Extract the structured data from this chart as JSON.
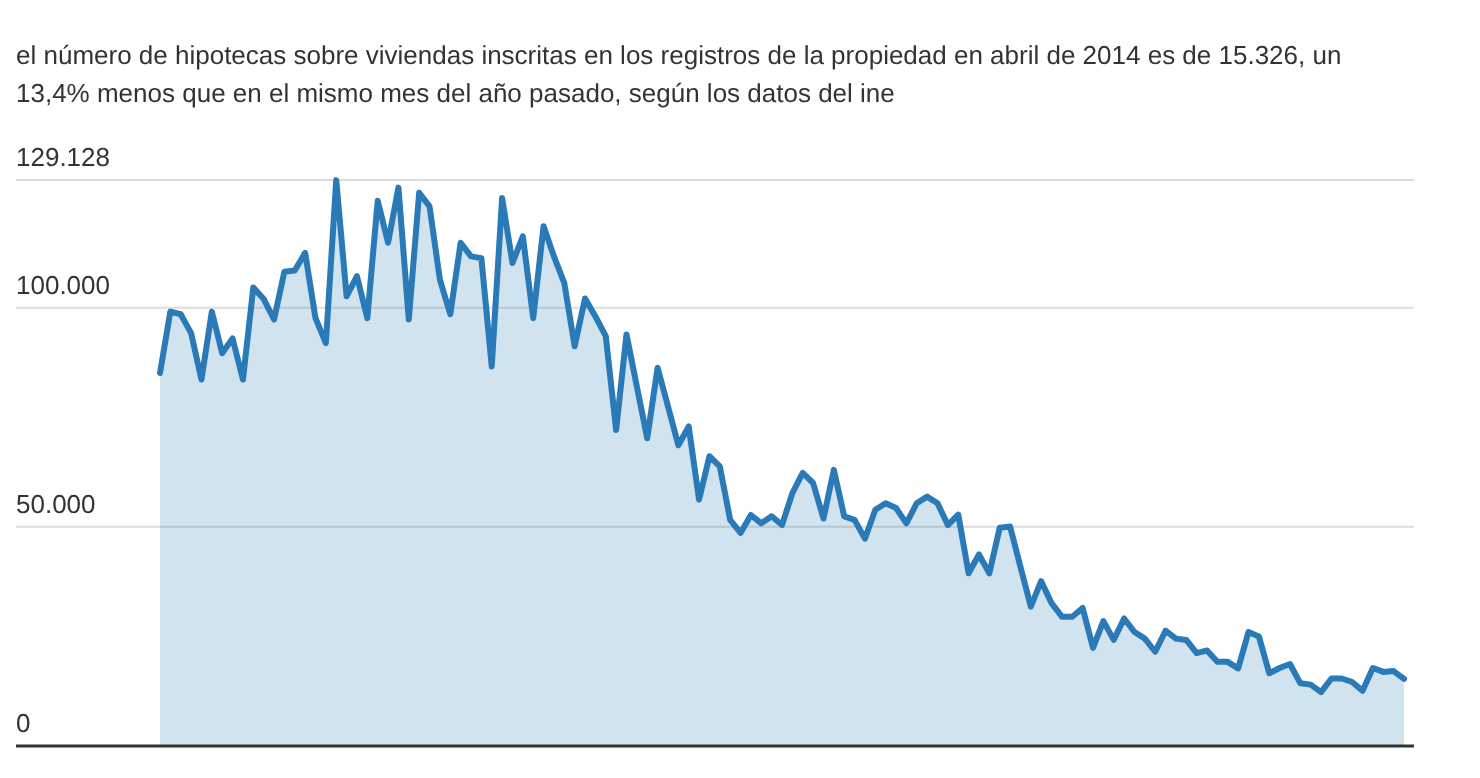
{
  "chart_data": {
    "type": "area",
    "subtitle": "el número de hipotecas sobre viviendas inscritas en los registros de la propiedad en abril de 2014 es de 15.326, un 13,4% menos que en el mismo mes del año pasado, según los datos del ine",
    "categories": [
      null,
      null,
      null,
      null,
      null,
      null,
      null,
      null,
      null,
      null,
      null,
      null,
      null,
      null,
      null,
      null,
      null,
      null,
      null,
      null,
      null,
      null,
      null,
      null,
      null,
      null,
      null,
      null,
      null,
      null,
      null,
      null,
      null,
      null,
      null,
      null,
      null,
      null,
      null,
      null,
      null,
      null,
      null,
      null,
      null,
      null,
      null,
      null,
      null,
      null,
      null,
      null,
      null,
      null,
      null,
      null,
      null,
      null,
      null,
      null,
      null,
      null,
      null,
      null,
      null,
      null,
      null,
      null,
      null,
      null,
      null,
      null,
      null,
      null,
      null,
      null,
      null,
      null,
      null,
      null,
      null,
      null,
      null,
      null,
      null,
      null,
      null,
      null,
      null,
      null,
      null,
      null,
      null,
      null,
      null,
      null,
      null,
      null,
      null,
      null,
      null,
      null,
      null,
      null,
      null,
      null,
      null,
      null,
      null,
      null,
      null,
      null,
      null,
      null,
      null,
      null,
      null,
      null,
      null,
      null,
      null
    ],
    "series": [
      {
        "color": "#2a7ab8",
        "values": [
          85100,
          99100,
          98500,
          94200,
          83600,
          99100,
          89600,
          93000,
          83600,
          104600,
          102000,
          97300,
          108200,
          108500,
          112500,
          97600,
          91900,
          129100,
          102600,
          107200,
          97600,
          124400,
          114800,
          127400,
          97300,
          126200,
          123100,
          106400,
          98500,
          114800,
          111700,
          111300,
          86600,
          125000,
          110200,
          116300,
          97600,
          118600,
          111700,
          105600,
          91200,
          102100,
          98000,
          93500,
          72100,
          93900,
          82000,
          70200,
          86300,
          77500,
          68600,
          72900,
          56200,
          66100,
          63800,
          51600,
          48600,
          52700,
          50800,
          52400,
          50400,
          57700,
          62300,
          60000,
          51900,
          63000,
          52400,
          51600,
          47300,
          53900,
          55400,
          54300,
          50800,
          55400,
          56900,
          55400,
          50400,
          52800,
          39400,
          43700,
          39400,
          49800,
          50100,
          40900,
          31800,
          37600,
          32600,
          29500,
          29500,
          31500,
          22400,
          28500,
          24200,
          29100,
          26000,
          24500,
          21500,
          26300,
          24500,
          24200,
          21200,
          21800,
          19200,
          19200,
          17700,
          26000,
          25000,
          16600,
          17800,
          18700,
          14300,
          14000,
          12300,
          15400,
          15400,
          14600,
          12600,
          17800,
          16900,
          17100,
          15300
        ]
      }
    ],
    "ylim": [
      0,
      129128
    ],
    "yticks": [
      {
        "value": 0,
        "label": "0"
      },
      {
        "value": 50000,
        "label": "50.000"
      },
      {
        "value": 100000,
        "label": "100.000"
      },
      {
        "value": 129128,
        "label": "129.128"
      }
    ],
    "grid": "y"
  }
}
